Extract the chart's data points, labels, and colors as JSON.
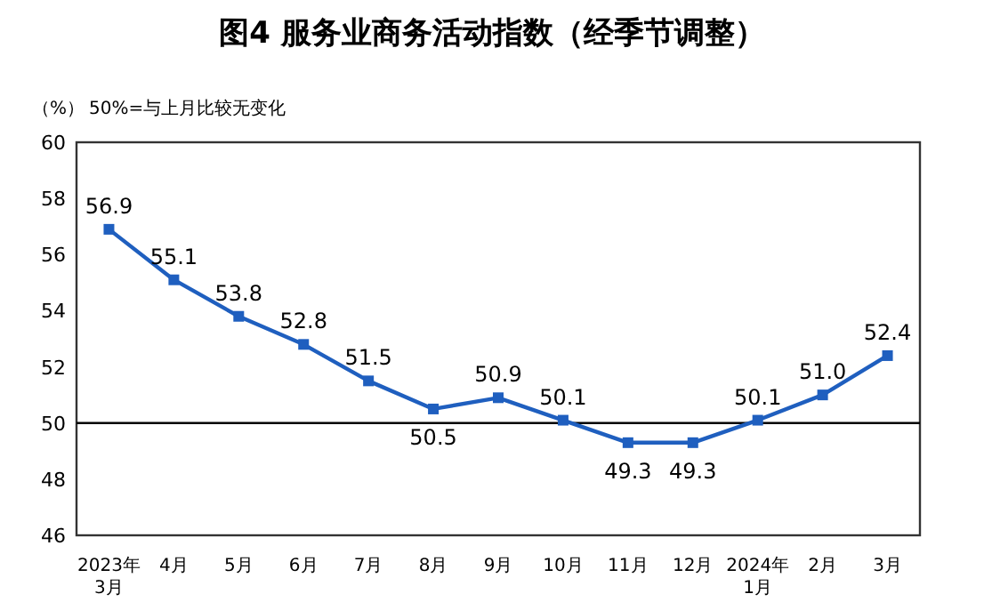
{
  "chart_data": {
    "type": "line",
    "title": "图4 服务业商务活动指数（经季节调整）",
    "ylabel": "（%）",
    "annotations": [
      "50%=与上月比较无变化"
    ],
    "categories": [
      "2023年\n3月",
      "4月",
      "5月",
      "6月",
      "7月",
      "8月",
      "9月",
      "10月",
      "11月",
      "12月",
      "2024年\n1月",
      "2月",
      "3月"
    ],
    "series": [
      {
        "color": "#1f5fbf",
        "values": [
          56.9,
          55.1,
          53.8,
          52.8,
          51.5,
          50.5,
          50.9,
          50.1,
          49.3,
          49.3,
          50.1,
          51.0,
          52.4
        ],
        "value_labels": [
          "56.9",
          "55.1",
          "53.8",
          "52.8",
          "51.5",
          "50.5",
          "50.9",
          "50.1",
          "49.3",
          "49.3",
          "50.1",
          "51.0",
          "52.4"
        ]
      }
    ],
    "ylim": [
      46,
      60
    ],
    "yticks": [
      46,
      48,
      50,
      52,
      54,
      56,
      58,
      60
    ],
    "ref_lines": [
      {
        "axis": "y",
        "value": 50,
        "color": "#000000"
      }
    ],
    "marker": "square",
    "line_style": "solid",
    "grid": false
  }
}
